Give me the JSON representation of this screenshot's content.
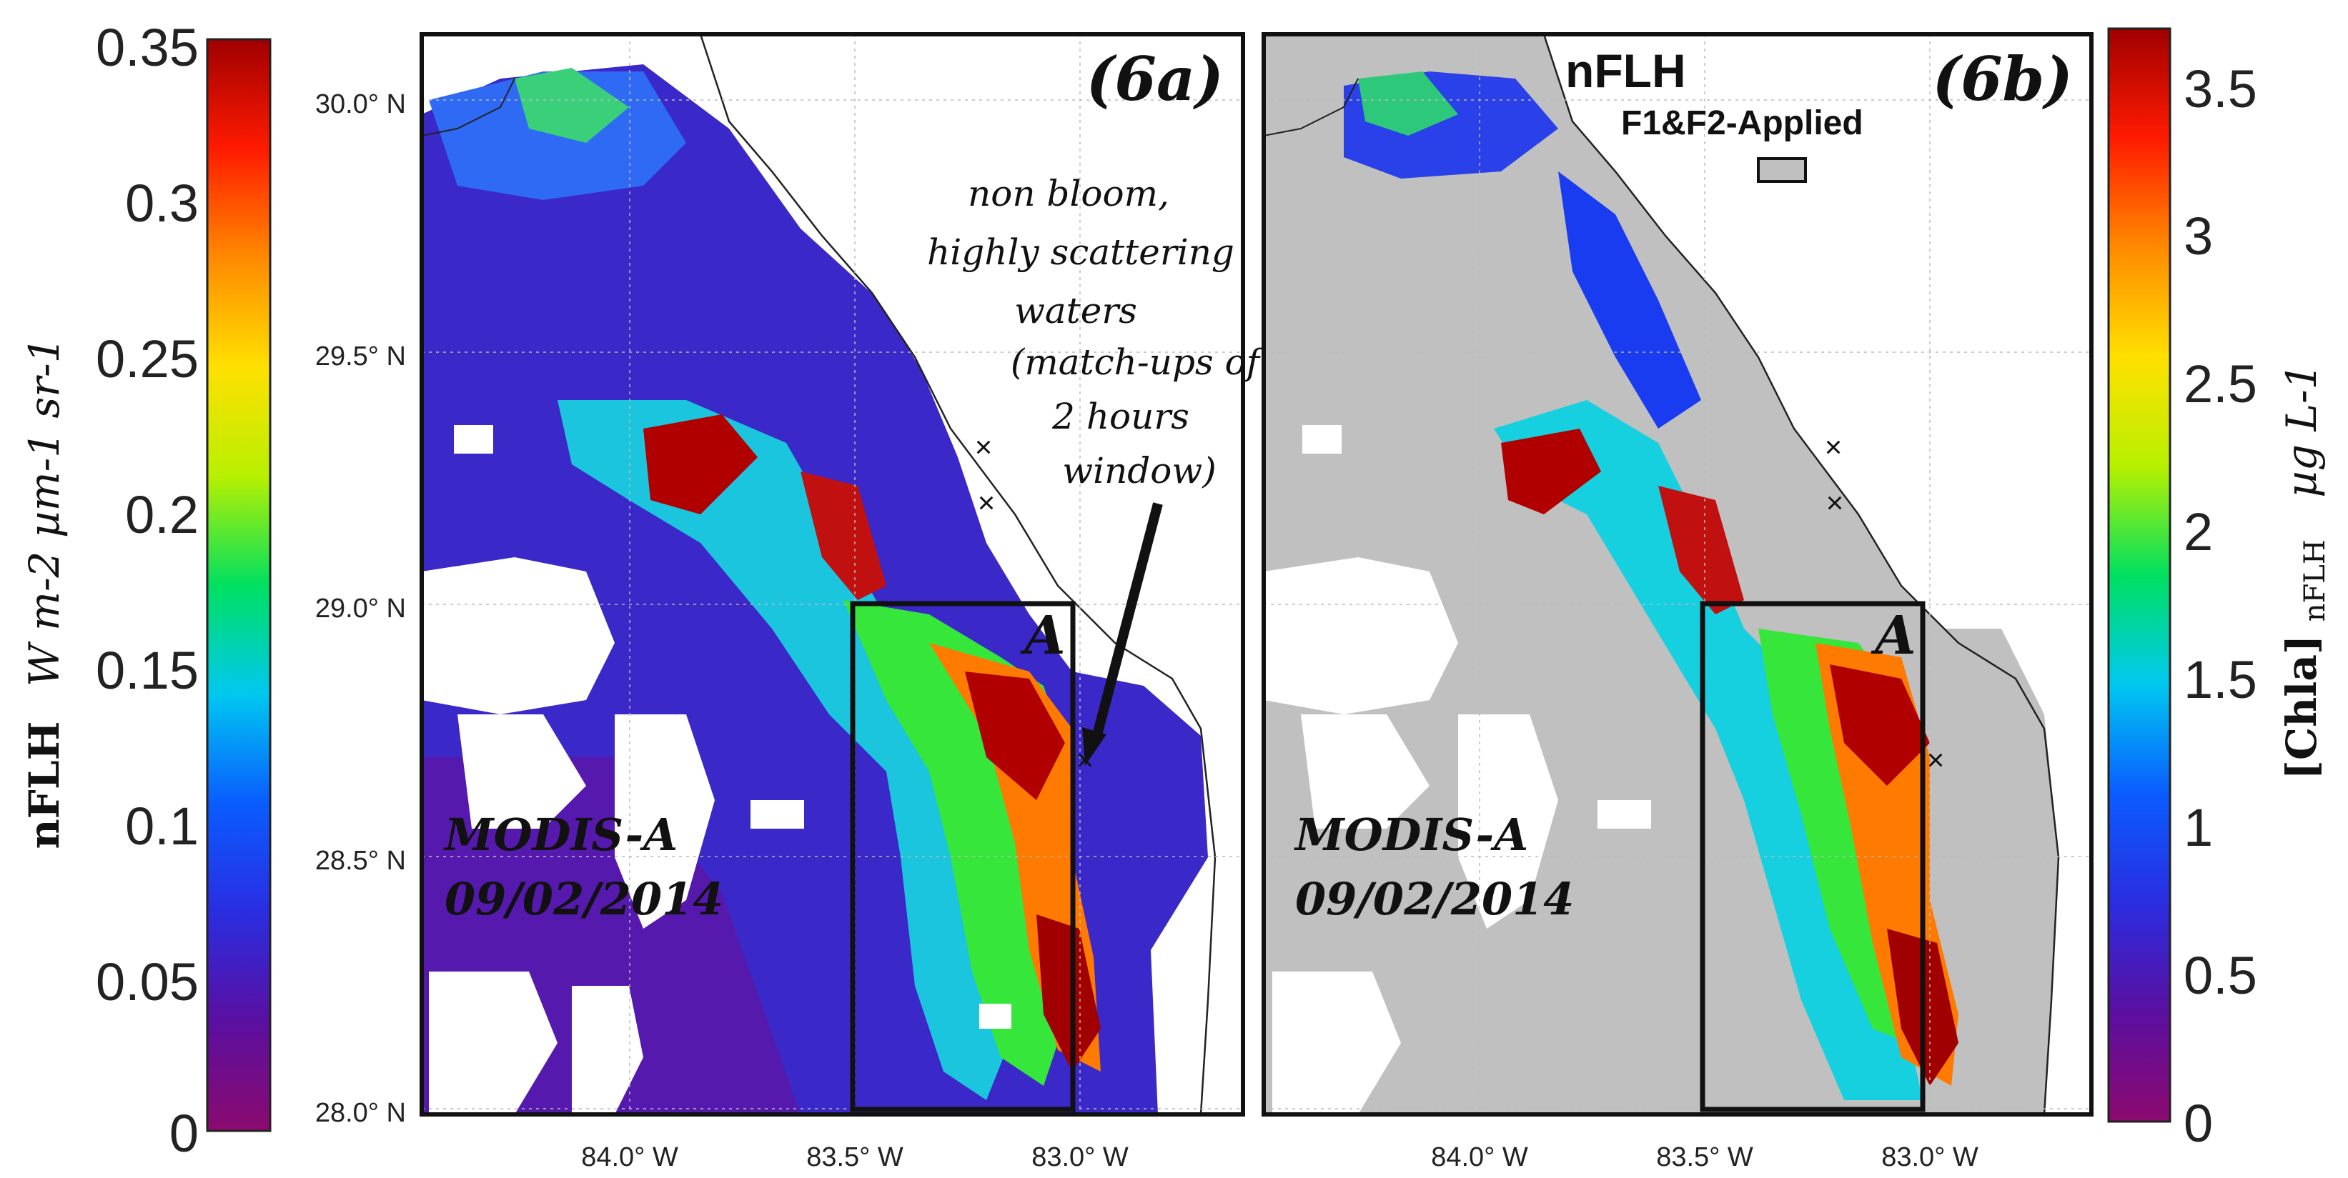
{
  "left_colorbar": {
    "ticks": [
      "0.35",
      "0.3",
      "0.25",
      "0.2",
      "0.15",
      "0.1",
      "0.05",
      "0"
    ],
    "label_main": "nFLH",
    "label_units": "W m-2 µm-1 sr-1",
    "min": 0,
    "max": 0.35
  },
  "right_colorbar": {
    "ticks": [
      "3.5",
      "3",
      "2.5",
      "2",
      "1.5",
      "1",
      "0.5",
      "0"
    ],
    "label_main": "[Chla]",
    "label_sub": "nFLH",
    "label_units": "µg L-1",
    "min": 0,
    "max": 3.7
  },
  "lat_ticks": [
    "30.0° N",
    "29.5° N",
    "29.0° N",
    "28.5° N",
    "28.0° N"
  ],
  "lon_ticks": [
    "84.0° W",
    "83.5° W",
    "83.0° W"
  ],
  "panel_a": {
    "label": "(6a)",
    "sensor": "MODIS-A",
    "date": "09/02/2014",
    "box_label": "A",
    "annotation": [
      "non bloom,",
      "highly scattering",
      "waters",
      "(match-ups of",
      "2 hours",
      "window)"
    ]
  },
  "panel_b": {
    "label": "(6b)",
    "title": "nFLH",
    "legend_label": "F1&F2-Applied",
    "legend_color": "#c0c0c0",
    "sensor": "MODIS-A",
    "date": "09/02/2014",
    "box_label": "A"
  },
  "colors": {
    "ramp": [
      "#8b0a6e",
      "#5a0fa0",
      "#2a2de0",
      "#0a5cff",
      "#00c8f0",
      "#00e060",
      "#b8f000",
      "#ffe000",
      "#ff8a00",
      "#ff1a00",
      "#a00000"
    ],
    "masked": "#c0c0c0",
    "nodata": "#ffffff"
  }
}
